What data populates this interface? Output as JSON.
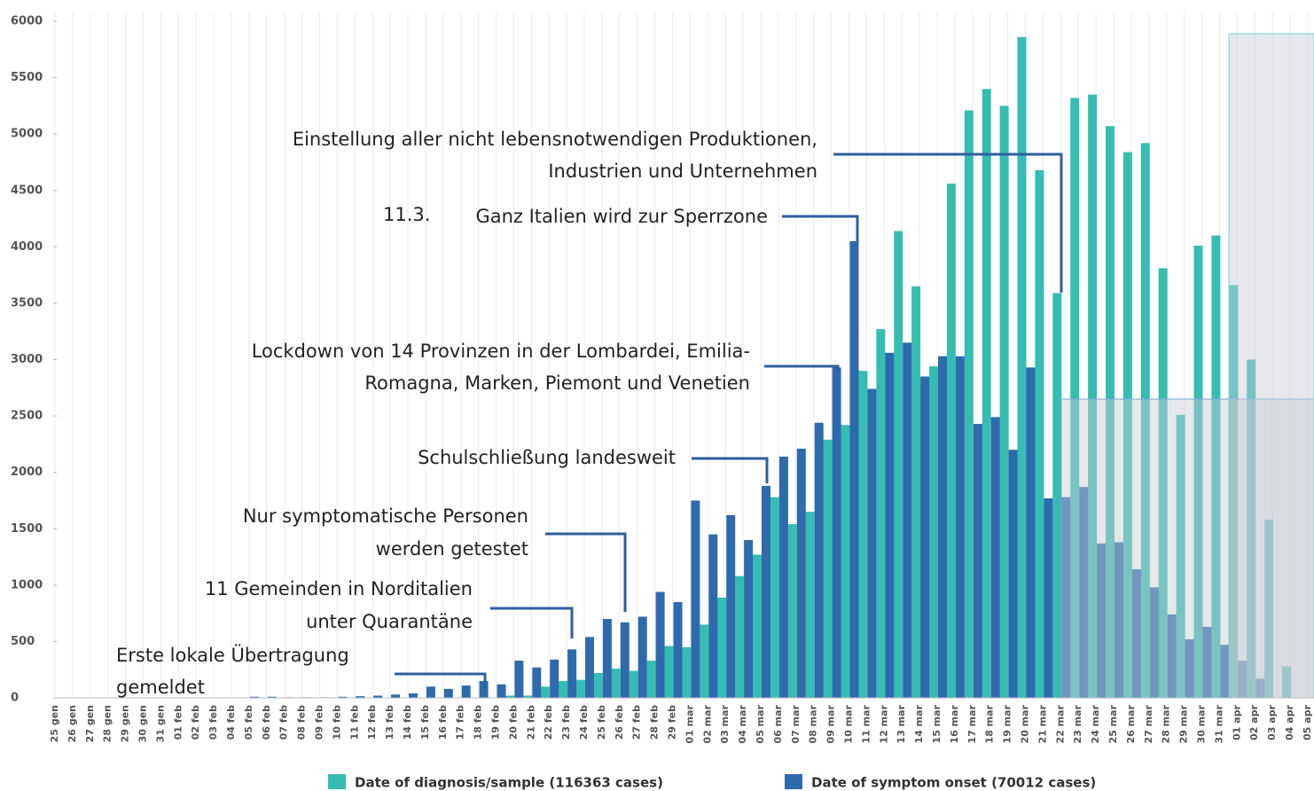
{
  "chart_data": {
    "type": "bar",
    "categories": [
      "25 gen",
      "26 gen",
      "27 gen",
      "28 gen",
      "29 gen",
      "30 gen",
      "31 gen",
      "01 feb",
      "02 feb",
      "03 feb",
      "04 feb",
      "05 feb",
      "06 feb",
      "07 feb",
      "08 feb",
      "09 feb",
      "10 feb",
      "11 feb",
      "12 feb",
      "13 feb",
      "14 feb",
      "15 feb",
      "16 feb",
      "17 feb",
      "18 feb",
      "19 feb",
      "20 feb",
      "21 feb",
      "22 feb",
      "23 feb",
      "24 feb",
      "25 feb",
      "26 feb",
      "27 feb",
      "28 feb",
      "29 feb",
      "01 mar",
      "02 mar",
      "03 mar",
      "04 mar",
      "05 mar",
      "06 mar",
      "07 mar",
      "08 mar",
      "09 mar",
      "10 mar",
      "11 mar",
      "12 mar",
      "13 mar",
      "14 mar",
      "15 mar",
      "16 mar",
      "17 mar",
      "18 mar",
      "19 mar",
      "20 mar",
      "21 mar",
      "22 mar",
      "23 mar",
      "24 mar",
      "25 mar",
      "26 mar",
      "27 mar",
      "28 mar",
      "29 mar",
      "30 mar",
      "31 mar",
      "01 apr",
      "02 apr",
      "03 apr",
      "04 apr",
      "05 apr"
    ],
    "series": [
      {
        "name": "Date of diagnosis/sample (116363 cases)",
        "color": "#36bdb2",
        "values": [
          0,
          0,
          0,
          0,
          0,
          0,
          0,
          0,
          0,
          0,
          0,
          0,
          0,
          0,
          0,
          0,
          0,
          0,
          0,
          0,
          0,
          0,
          0,
          0,
          0,
          0,
          20,
          20,
          100,
          150,
          160,
          220,
          260,
          240,
          330,
          460,
          450,
          650,
          890,
          1080,
          1270,
          1780,
          1540,
          1650,
          2290,
          2420,
          2900,
          3270,
          4140,
          3650,
          2940,
          4560,
          5210,
          5400,
          5250,
          5860,
          4680,
          3590,
          5320,
          5350,
          5070,
          4840,
          4920,
          3810,
          2510,
          4010,
          4100,
          3660,
          3000,
          1580,
          280,
          0
        ]
      },
      {
        "name": "Date of symptom onset (70012 cases)",
        "color": "#2f6aad",
        "values": [
          0,
          0,
          0,
          0,
          0,
          0,
          0,
          0,
          0,
          0,
          0,
          10,
          10,
          5,
          5,
          5,
          10,
          15,
          20,
          30,
          40,
          100,
          80,
          110,
          150,
          120,
          330,
          270,
          340,
          430,
          540,
          700,
          670,
          720,
          940,
          850,
          1750,
          1450,
          1620,
          1400,
          1880,
          2140,
          2210,
          2440,
          2930,
          4050,
          2740,
          3060,
          3150,
          2850,
          3030,
          3030,
          2430,
          2490,
          2200,
          2930,
          1770,
          1780,
          1870,
          1370,
          1380,
          1140,
          980,
          740,
          520,
          630,
          470,
          330,
          170,
          0,
          0,
          0
        ]
      }
    ],
    "ylim": [
      0,
      6000
    ],
    "yticks": [
      0,
      500,
      1000,
      1500,
      2000,
      2500,
      3000,
      3500,
      4000,
      4500,
      5000,
      5500,
      6000
    ],
    "annotations": [
      "Einstellung  aller nicht  lebensnotwendigen  Produktionen,",
      "Industrien  und  Unternehmen",
      "11.3.",
      "Ganz Italien wird zur Sperrzone",
      "Lockdown  von 14 Provinzen in der Lombardei, Emilia-",
      "Romagna, Marken, Piemont und Venetien",
      "Schulschließung  landesweit",
      "Nur symptomatische  Personen",
      "werden getestet",
      "11 Gemeinden  in Norditalien",
      "unter Quarantäne",
      "Erste lokale Übertragung",
      "gemeldet"
    ]
  }
}
